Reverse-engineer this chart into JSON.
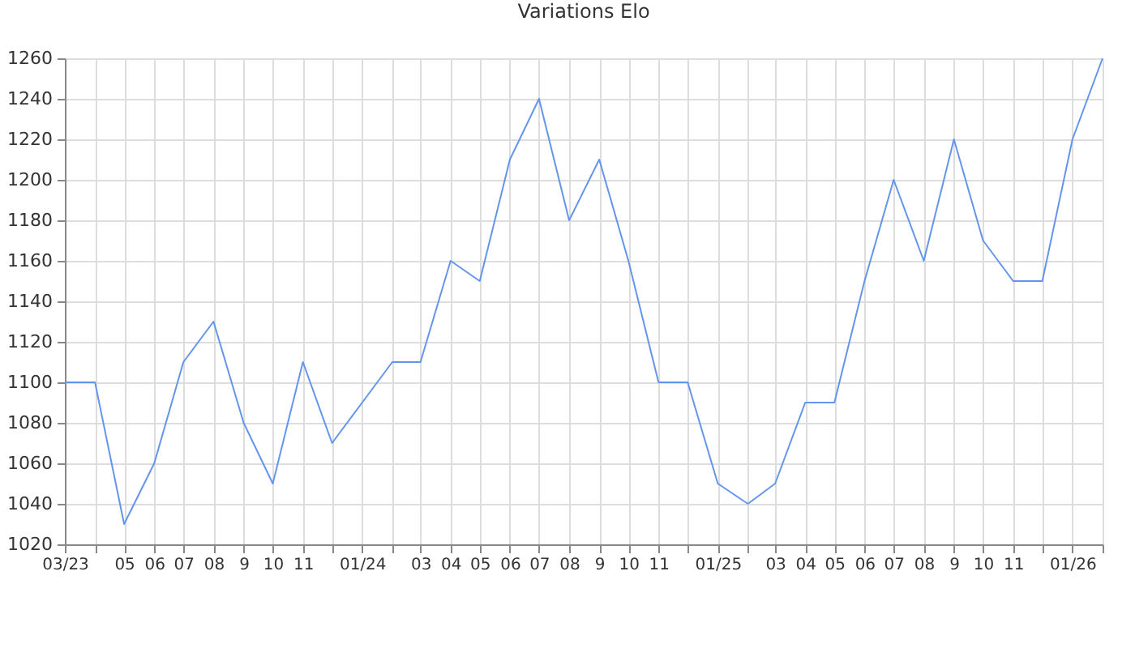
{
  "chart_data": {
    "type": "line",
    "title": "Variations Elo",
    "x": [
      "2023-03",
      "2023-04",
      "2023-05",
      "2023-06",
      "2023-07",
      "2023-08",
      "2023-09",
      "2023-10",
      "2023-11",
      "2023-12",
      "2024-01",
      "2024-02",
      "2024-03",
      "2024-04",
      "2024-05",
      "2024-06",
      "2024-07",
      "2024-08",
      "2024-09",
      "2024-10",
      "2024-11",
      "2024-12",
      "2025-01",
      "2025-02",
      "2025-03",
      "2025-04",
      "2025-05",
      "2025-06",
      "2025-07",
      "2025-08",
      "2025-09",
      "2025-10",
      "2025-11",
      "2025-12",
      "2026-01",
      "2026-02"
    ],
    "series": [
      {
        "color": "#6495ed",
        "values": [
          1100,
          1100,
          1030,
          1060,
          1110,
          1130,
          1080,
          1050,
          1110,
          1070,
          1090,
          1110,
          1110,
          1160,
          1150,
          1210,
          1240,
          1180,
          1210,
          1160,
          1100,
          1100,
          1050,
          1040,
          1050,
          1090,
          1090,
          1150,
          1200,
          1160,
          1220,
          1170,
          1150,
          1150,
          1220,
          1260
        ]
      }
    ],
    "xlim": [
      "2023-03",
      "2026-02"
    ],
    "xticks": [
      {
        "value": "2023-03",
        "label": "03/23"
      },
      {
        "value": "2023-04",
        "label": null
      },
      {
        "value": "2023-05",
        "label": "05"
      },
      {
        "value": "2023-06",
        "label": "06"
      },
      {
        "value": "2023-07",
        "label": "07"
      },
      {
        "value": "2023-08",
        "label": "08"
      },
      {
        "value": "2023-09",
        "label": "9"
      },
      {
        "value": "2023-10",
        "label": "10"
      },
      {
        "value": "2023-11",
        "label": "11"
      },
      {
        "value": "2023-12",
        "label": null
      },
      {
        "value": "2024-01",
        "label": "01/24"
      },
      {
        "value": "2024-02",
        "label": null
      },
      {
        "value": "2024-03",
        "label": "03"
      },
      {
        "value": "2024-04",
        "label": "04"
      },
      {
        "value": "2024-05",
        "label": "05"
      },
      {
        "value": "2024-06",
        "label": "06"
      },
      {
        "value": "2024-07",
        "label": "07"
      },
      {
        "value": "2024-08",
        "label": "08"
      },
      {
        "value": "2024-09",
        "label": "9"
      },
      {
        "value": "2024-10",
        "label": "10"
      },
      {
        "value": "2024-11",
        "label": "11"
      },
      {
        "value": "2024-12",
        "label": null
      },
      {
        "value": "2025-01",
        "label": "01/25"
      },
      {
        "value": "2025-02",
        "label": null
      },
      {
        "value": "2025-03",
        "label": "03"
      },
      {
        "value": "2025-04",
        "label": "04"
      },
      {
        "value": "2025-05",
        "label": "05"
      },
      {
        "value": "2025-06",
        "label": "06"
      },
      {
        "value": "2025-07",
        "label": "07"
      },
      {
        "value": "2025-08",
        "label": "08"
      },
      {
        "value": "2025-09",
        "label": "9"
      },
      {
        "value": "2025-10",
        "label": "10"
      },
      {
        "value": "2025-11",
        "label": "11"
      },
      {
        "value": "2025-12",
        "label": null
      },
      {
        "value": "2026-01",
        "label": "01/26"
      },
      {
        "value": "2026-02",
        "label": null
      }
    ],
    "ylim": [
      1020,
      1260
    ],
    "yticks": [
      1020,
      1040,
      1060,
      1080,
      1100,
      1120,
      1140,
      1160,
      1180,
      1200,
      1220,
      1240,
      1260
    ],
    "grid": true,
    "marker": "none",
    "line_style": "solid"
  }
}
